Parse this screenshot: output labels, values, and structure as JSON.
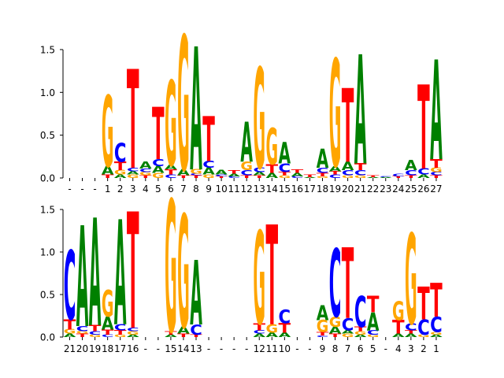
{
  "colors": {
    "A": "#008000",
    "C": "#0000ff",
    "G": "#ffa500",
    "T": "#ff0000"
  },
  "chart_data": [
    {
      "type": "sequence-logo",
      "title": "",
      "xlabel": "",
      "ylabel": "",
      "ylim": [
        0,
        1.6
      ],
      "yticks": [
        "0.0",
        "0.5",
        "1.0",
        "1.5"
      ],
      "categories": [
        "-",
        "-",
        "-",
        "1",
        "2",
        "3",
        "4",
        "5",
        "6",
        "7",
        "8",
        "9",
        "10",
        "11",
        "12",
        "13",
        "14",
        "15",
        "16",
        "17",
        "18",
        "19",
        "20",
        "21",
        "22",
        "23",
        "24",
        "25",
        "26",
        "27"
      ],
      "stacks": [
        [],
        [],
        [],
        [
          {
            "b": "T",
            "h": 0.04
          },
          {
            "b": "A",
            "h": 0.1
          },
          {
            "b": "G",
            "h": 0.82
          }
        ],
        [
          {
            "b": "A",
            "h": 0.04
          },
          {
            "b": "G",
            "h": 0.05
          },
          {
            "b": "T",
            "h": 0.1
          },
          {
            "b": "C",
            "h": 0.22
          }
        ],
        [
          {
            "b": "G",
            "h": 0.04
          },
          {
            "b": "A",
            "h": 0.04
          },
          {
            "b": "C",
            "h": 0.04
          },
          {
            "b": "T",
            "h": 1.14
          }
        ],
        [
          {
            "b": "T",
            "h": 0.03
          },
          {
            "b": "G",
            "h": 0.04
          },
          {
            "b": "C",
            "h": 0.04
          },
          {
            "b": "A",
            "h": 0.08
          }
        ],
        [
          {
            "b": "G",
            "h": 0.06
          },
          {
            "b": "A",
            "h": 0.08
          },
          {
            "b": "C",
            "h": 0.08
          },
          {
            "b": "T",
            "h": 0.6
          }
        ],
        [
          {
            "b": "C",
            "h": 0.04
          },
          {
            "b": "T",
            "h": 0.06
          },
          {
            "b": "A",
            "h": 0.05
          },
          {
            "b": "G",
            "h": 0.98
          }
        ],
        [
          {
            "b": "T",
            "h": 0.03
          },
          {
            "b": "A",
            "h": 0.07
          },
          {
            "b": "G",
            "h": 1.55
          }
        ],
        [
          {
            "b": "T",
            "h": 0.03
          },
          {
            "b": "C",
            "h": 0.02
          },
          {
            "b": "G",
            "h": 0.05
          },
          {
            "b": "A",
            "h": 1.42
          }
        ],
        [
          {
            "b": "G",
            "h": 0.04
          },
          {
            "b": "A",
            "h": 0.08
          },
          {
            "b": "C",
            "h": 0.08
          },
          {
            "b": "T",
            "h": 0.52
          }
        ],
        [
          {
            "b": "T",
            "h": 0.02
          },
          {
            "b": "C",
            "h": 0.02
          },
          {
            "b": "A",
            "h": 0.05
          }
        ],
        [
          {
            "b": "C",
            "h": 0.02
          },
          {
            "b": "A",
            "h": 0.03
          },
          {
            "b": "T",
            "h": 0.04
          }
        ],
        [
          {
            "b": "T",
            "h": 0.03
          },
          {
            "b": "C",
            "h": 0.06
          },
          {
            "b": "G",
            "h": 0.1
          },
          {
            "b": "A",
            "h": 0.46
          }
        ],
        [
          {
            "b": "T",
            "h": 0.03
          },
          {
            "b": "A",
            "h": 0.04
          },
          {
            "b": "C",
            "h": 0.05
          },
          {
            "b": "G",
            "h": 1.16
          }
        ],
        [
          {
            "b": "A",
            "h": 0.06
          },
          {
            "b": "T",
            "h": 0.1
          },
          {
            "b": "G",
            "h": 0.42
          }
        ],
        [
          {
            "b": "G",
            "h": 0.03
          },
          {
            "b": "T",
            "h": 0.04
          },
          {
            "b": "C",
            "h": 0.1
          },
          {
            "b": "A",
            "h": 0.25
          }
        ],
        [
          {
            "b": "C",
            "h": 0.02
          },
          {
            "b": "A",
            "h": 0.04
          },
          {
            "b": "T",
            "h": 0.04
          }
        ],
        [
          {
            "b": "A",
            "h": 0.01
          },
          {
            "b": "T",
            "h": 0.03
          }
        ],
        [
          {
            "b": "G",
            "h": 0.02
          },
          {
            "b": "T",
            "h": 0.04
          },
          {
            "b": "C",
            "h": 0.06
          },
          {
            "b": "A",
            "h": 0.22
          }
        ],
        [
          {
            "b": "C",
            "h": 0.04
          },
          {
            "b": "T",
            "h": 0.04
          },
          {
            "b": "A",
            "h": 0.06
          },
          {
            "b": "G",
            "h": 1.24
          }
        ],
        [
          {
            "b": "G",
            "h": 0.03
          },
          {
            "b": "C",
            "h": 0.06
          },
          {
            "b": "A",
            "h": 0.1
          },
          {
            "b": "T",
            "h": 0.85
          }
        ],
        [
          {
            "b": "G",
            "h": 0.03
          },
          {
            "b": "C",
            "h": 0.06
          },
          {
            "b": "T",
            "h": 0.08
          },
          {
            "b": "A",
            "h": 1.26
          }
        ],
        [
          {
            "b": "A",
            "h": 0.01
          },
          {
            "b": "T",
            "h": 0.02
          }
        ],
        [
          {
            "b": "A",
            "h": 0.01
          },
          {
            "b": "C",
            "h": 0.01
          }
        ],
        [
          {
            "b": "T",
            "h": 0.02
          },
          {
            "b": "C",
            "h": 0.03
          }
        ],
        [
          {
            "b": "T",
            "h": 0.03
          },
          {
            "b": "C",
            "h": 0.06
          },
          {
            "b": "A",
            "h": 0.12
          }
        ],
        [
          {
            "b": "A",
            "h": 0.04
          },
          {
            "b": "C",
            "h": 0.07
          },
          {
            "b": "T",
            "h": 0.97
          }
        ],
        [
          {
            "b": "T",
            "h": 0.03
          },
          {
            "b": "C",
            "h": 0.04
          },
          {
            "b": "G",
            "h": 0.05
          },
          {
            "b": "T",
            "h": 0.1
          },
          {
            "b": "A",
            "h": 1.15
          }
        ]
      ]
    },
    {
      "type": "sequence-logo",
      "title": "",
      "xlabel": "",
      "ylabel": "",
      "ylim": [
        0,
        1.6
      ],
      "yticks": [
        "0.0",
        "0.5",
        "1.0",
        "1.5"
      ],
      "categories": [
        "21",
        "20",
        "19",
        "18",
        "17",
        "16",
        "-",
        "-",
        "15",
        "14",
        "13",
        "-",
        "-",
        "-",
        "-",
        "12",
        "11",
        "10",
        "-",
        "-",
        "9",
        "8",
        "7",
        "6",
        "5",
        "-",
        "4",
        "3",
        "2",
        "1"
      ],
      "stacks": [
        [
          {
            "b": "A",
            "h": 0.04
          },
          {
            "b": "G",
            "h": 0.05
          },
          {
            "b": "T",
            "h": 0.12
          },
          {
            "b": "C",
            "h": 0.8
          }
        ],
        [
          {
            "b": "T",
            "h": 0.04
          },
          {
            "b": "G",
            "h": 0.03
          },
          {
            "b": "C",
            "h": 0.06
          },
          {
            "b": "A",
            "h": 1.17
          }
        ],
        [
          {
            "b": "G",
            "h": 0.03
          },
          {
            "b": "C",
            "h": 0.04
          },
          {
            "b": "T",
            "h": 0.07
          },
          {
            "b": "A",
            "h": 1.25
          }
        ],
        [
          {
            "b": "C",
            "h": 0.03
          },
          {
            "b": "T",
            "h": 0.06
          },
          {
            "b": "A",
            "h": 0.15
          },
          {
            "b": "G",
            "h": 0.31
          }
        ],
        [
          {
            "b": "G",
            "h": 0.03
          },
          {
            "b": "T",
            "h": 0.05
          },
          {
            "b": "C",
            "h": 0.07
          },
          {
            "b": "A",
            "h": 1.22
          }
        ],
        [
          {
            "b": "A",
            "h": 0.03
          },
          {
            "b": "G",
            "h": 0.04
          },
          {
            "b": "C",
            "h": 0.04
          },
          {
            "b": "T",
            "h": 1.35
          }
        ],
        [],
        [],
        [
          {
            "b": "A",
            "h": 0.03
          },
          {
            "b": "T",
            "h": 0.04
          },
          {
            "b": "G",
            "h": 1.53
          }
        ],
        [
          {
            "b": "T",
            "h": 0.04
          },
          {
            "b": "A",
            "h": 0.08
          },
          {
            "b": "G",
            "h": 1.31
          }
        ],
        [
          {
            "b": "T",
            "h": 0.03
          },
          {
            "b": "C",
            "h": 0.12
          },
          {
            "b": "A",
            "h": 0.75
          }
        ],
        [],
        [],
        [],
        [],
        [
          {
            "b": "A",
            "h": 0.04
          },
          {
            "b": "C",
            "h": 0.04
          },
          {
            "b": "T",
            "h": 0.08
          },
          {
            "b": "G",
            "h": 1.08
          }
        ],
        [
          {
            "b": "A",
            "h": 0.05
          },
          {
            "b": "G",
            "h": 0.1
          },
          {
            "b": "T",
            "h": 1.16
          }
        ],
        [
          {
            "b": "A",
            "h": 0.05
          },
          {
            "b": "T",
            "h": 0.11
          },
          {
            "b": "C",
            "h": 0.16
          }
        ],
        [],
        [],
        [
          {
            "b": "C",
            "h": 0.02
          },
          {
            "b": "T",
            "h": 0.04
          },
          {
            "b": "G",
            "h": 0.14
          },
          {
            "b": "A",
            "h": 0.17
          }
        ],
        [
          {
            "b": "T",
            "h": 0.04
          },
          {
            "b": "A",
            "h": 0.08
          },
          {
            "b": "G",
            "h": 0.12
          },
          {
            "b": "C",
            "h": 0.79
          }
        ],
        [
          {
            "b": "G",
            "h": 0.04
          },
          {
            "b": "A",
            "h": 0.04
          },
          {
            "b": "C",
            "h": 0.14
          },
          {
            "b": "T",
            "h": 0.82
          }
        ],
        [
          {
            "b": "A",
            "h": 0.03
          },
          {
            "b": "G",
            "h": 0.04
          },
          {
            "b": "T",
            "h": 0.05
          },
          {
            "b": "C",
            "h": 0.36
          }
        ],
        [
          {
            "b": "G",
            "h": 0.03
          },
          {
            "b": "C",
            "h": 0.05
          },
          {
            "b": "A",
            "h": 0.21
          },
          {
            "b": "T",
            "h": 0.19
          }
        ],
        [],
        [
          {
            "b": "A",
            "h": 0.04
          },
          {
            "b": "T",
            "h": 0.16
          },
          {
            "b": "G",
            "h": 0.22
          }
        ],
        [
          {
            "b": "A",
            "h": 0.04
          },
          {
            "b": "T",
            "h": 0.04
          },
          {
            "b": "C",
            "h": 0.08
          },
          {
            "b": "G",
            "h": 1.05
          }
        ],
        [
          {
            "b": "G",
            "h": 0.03
          },
          {
            "b": "C",
            "h": 0.18
          },
          {
            "b": "T",
            "h": 0.38
          }
        ],
        [
          {
            "b": "A",
            "h": 0.03
          },
          {
            "b": "G",
            "h": 0.03
          },
          {
            "b": "C",
            "h": 0.18
          },
          {
            "b": "T",
            "h": 0.39
          }
        ]
      ]
    }
  ]
}
